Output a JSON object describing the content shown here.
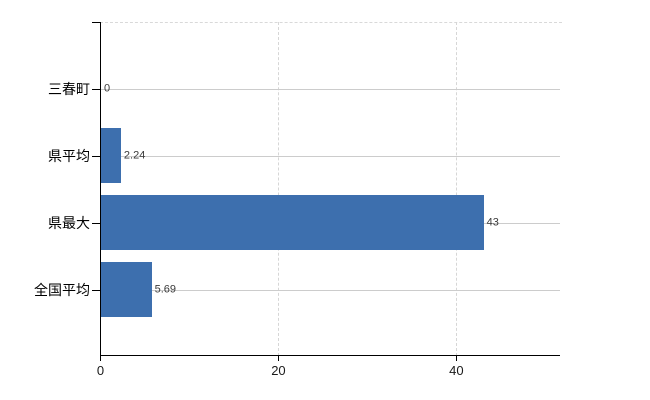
{
  "chart_data": {
    "type": "bar",
    "orientation": "horizontal",
    "title": "",
    "categories": [
      "三春町",
      "県平均",
      "県最大",
      "全国平均"
    ],
    "values": [
      0,
      2.24,
      43,
      5.69
    ],
    "value_labels": [
      "0",
      "2.24",
      "43",
      "5.69"
    ],
    "xlim": [
      0,
      51.7
    ],
    "xticks": [
      0,
      20,
      40
    ],
    "xtick_labels": [
      "0",
      "20",
      "40"
    ],
    "grid": true,
    "legend": "none",
    "bar_color": "#3d6fae",
    "axis_color": "#000000",
    "h_gridline_color": "#cccccc",
    "v_gridline_color": "#d6d6d6"
  }
}
